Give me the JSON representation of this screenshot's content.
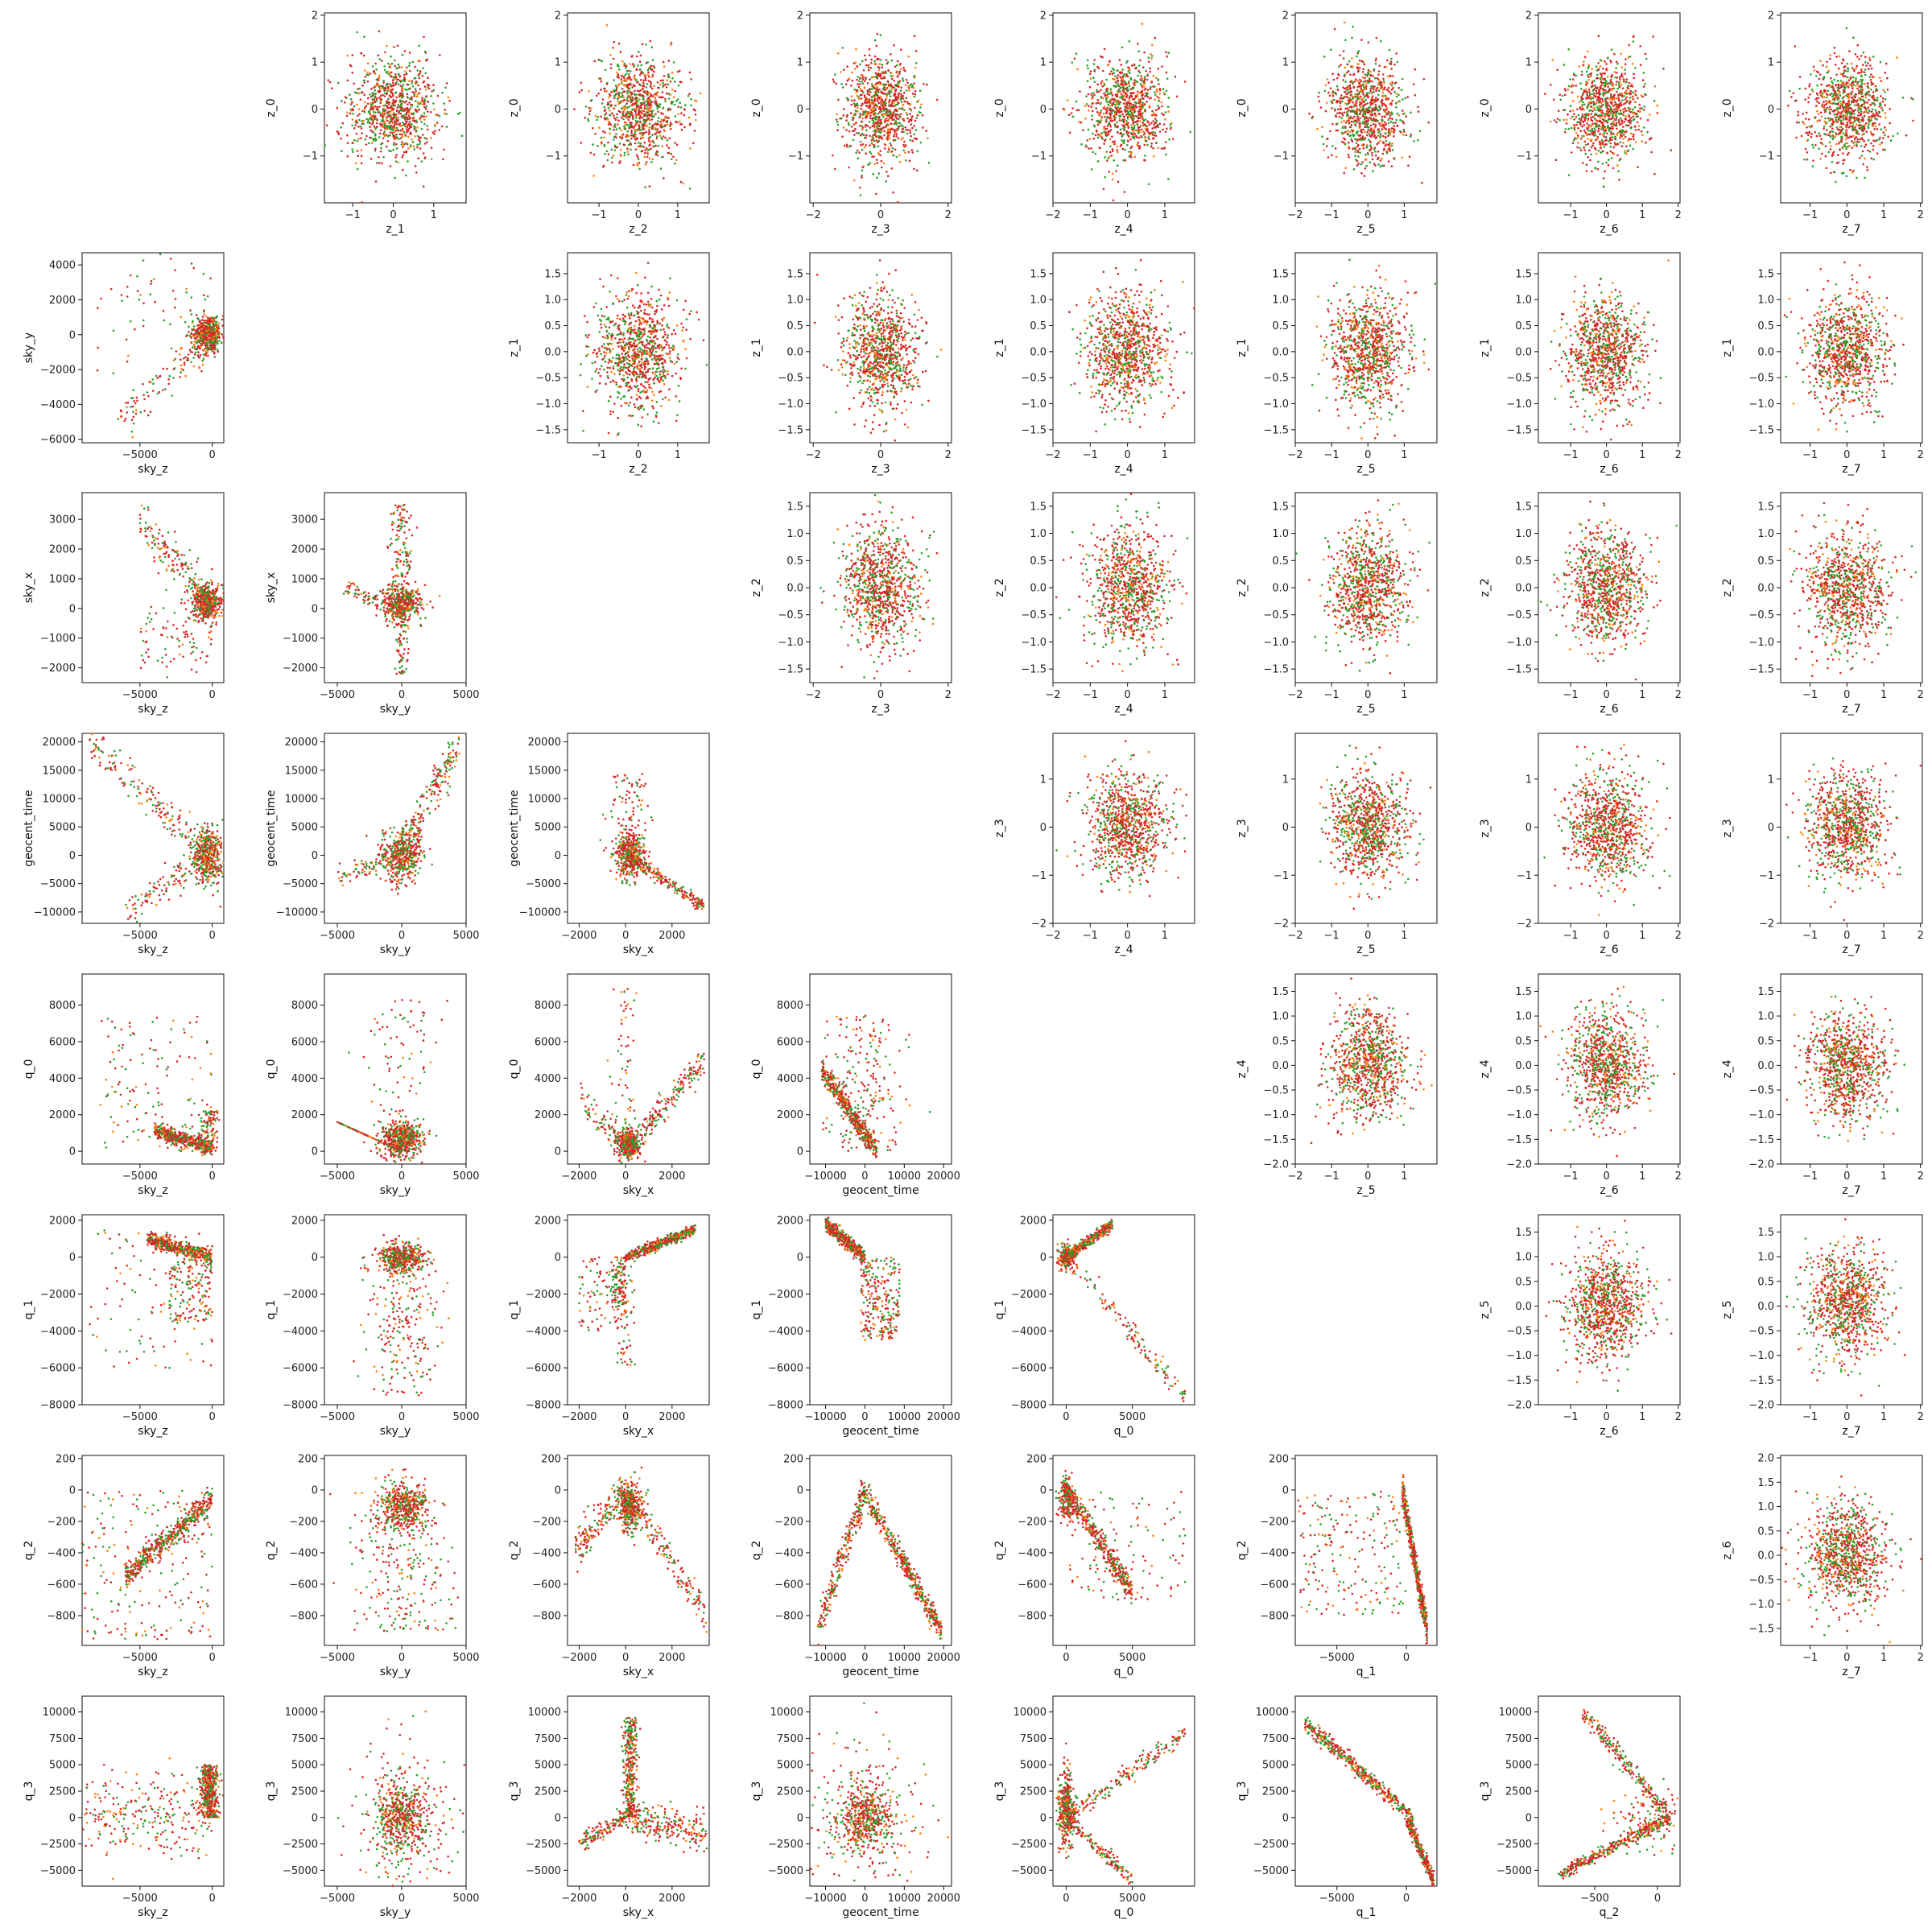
{
  "chart_data": {
    "type": "scatter",
    "layout": "pair-grid",
    "colors": {
      "green": "#2ca02c",
      "orange": "#ff7f0e",
      "red": "#d62728"
    },
    "rows": [
      {
        "ylabel": "z_0",
        "ylim": [
          -2.0,
          2.05
        ],
        "yticks": [
          -1,
          0,
          1,
          2
        ],
        "ytick_labels": [
          "−1",
          "0",
          "1",
          "2"
        ]
      },
      {
        "ylabel": "z_1",
        "ylim": [
          -1.75,
          1.9
        ],
        "yticks": [
          -1.5,
          -1.0,
          -0.5,
          0.0,
          0.5,
          1.0,
          1.5
        ],
        "ytick_labels": [
          "−1.5",
          "−1.0",
          "−0.5",
          "0.0",
          "0.5",
          "1.0",
          "1.5"
        ]
      },
      {
        "ylabel": "sky_y",
        "ylim": [
          -6200,
          4700
        ],
        "yticks": [
          -6000,
          -4000,
          -2000,
          0,
          2000,
          4000
        ],
        "ytick_labels": [
          "−6000",
          "−4000",
          "−2000",
          "0",
          "2000",
          "4000"
        ]
      },
      {
        "ylabel": "z_2",
        "ylim": [
          -1.75,
          1.75
        ],
        "yticks": [
          -1.5,
          -1.0,
          -0.5,
          0.0,
          0.5,
          1.0,
          1.5
        ],
        "ytick_labels": [
          "−1.5",
          "−1.0",
          "−0.5",
          "0.0",
          "0.5",
          "1.0",
          "1.5"
        ]
      },
      {
        "ylabel": "sky_x",
        "ylim": [
          -2500,
          3900
        ],
        "yticks": [
          -2000,
          -1000,
          0,
          1000,
          2000,
          3000
        ],
        "ytick_labels": [
          "−2000",
          "−1000",
          "0",
          "1000",
          "2000",
          "3000"
        ]
      },
      {
        "ylabel": "z_3",
        "ylim": [
          -2.0,
          1.95
        ],
        "yticks": [
          -2,
          -1,
          0,
          1
        ],
        "ytick_labels": [
          "−2",
          "−1",
          "0",
          "1"
        ]
      },
      {
        "ylabel": "geocent_time",
        "ylim": [
          -12000,
          21500
        ],
        "yticks": [
          -10000,
          -5000,
          0,
          5000,
          10000,
          15000,
          20000
        ],
        "ytick_labels": [
          "−10000",
          "−5000",
          "0",
          "5000",
          "10000",
          "15000",
          "20000"
        ]
      },
      {
        "ylabel": "z_4",
        "ylim": [
          -2.0,
          1.85
        ],
        "yticks": [
          -2.0,
          -1.5,
          -1.0,
          -0.5,
          0.0,
          0.5,
          1.0,
          1.5
        ],
        "ytick_labels": [
          "−2.0",
          "−1.5",
          "−1.0",
          "−0.5",
          "0.0",
          "0.5",
          "1.0",
          "1.5"
        ]
      },
      {
        "ylabel": "q_0",
        "ylim": [
          -700,
          9700
        ],
        "yticks": [
          0,
          2000,
          4000,
          6000,
          8000
        ],
        "ytick_labels": [
          "0",
          "2000",
          "4000",
          "6000",
          "8000"
        ]
      },
      {
        "ylabel": "z_5",
        "ylim": [
          -2.0,
          1.85
        ],
        "yticks": [
          -2.0,
          -1.5,
          -1.0,
          -0.5,
          0.0,
          0.5,
          1.0,
          1.5
        ],
        "ytick_labels": [
          "−2.0",
          "−1.5",
          "−1.0",
          "−0.5",
          "0.0",
          "0.5",
          "1.0",
          "1.5"
        ]
      },
      {
        "ylabel": "q_1",
        "ylim": [
          -8000,
          2300
        ],
        "yticks": [
          -8000,
          -6000,
          -4000,
          -2000,
          0,
          2000
        ],
        "ytick_labels": [
          "−8000",
          "−6000",
          "−4000",
          "−2000",
          "0",
          "2000"
        ]
      },
      {
        "ylabel": "q_2",
        "ylim": [
          -990,
          220
        ],
        "yticks": [
          -800,
          -600,
          -400,
          -200,
          0,
          200
        ],
        "ytick_labels": [
          "−800",
          "−600",
          "−400",
          "−200",
          "0",
          "200"
        ]
      },
      {
        "ylabel": "z_6",
        "ylim": [
          -1.85,
          2.05
        ],
        "yticks": [
          -1.5,
          -1.0,
          -0.5,
          0.0,
          0.5,
          1.0,
          1.5,
          2.0
        ],
        "ytick_labels": [
          "−1.5",
          "−1.0",
          "−0.5",
          "0.0",
          "0.5",
          "1.0",
          "1.5",
          "2.0"
        ]
      },
      {
        "ylabel": "q_3",
        "ylim": [
          -6500,
          11500
        ],
        "yticks": [
          -5000,
          -2500,
          0,
          2500,
          5000,
          7500,
          10000
        ],
        "ytick_labels": [
          "−5000",
          "−2500",
          "0",
          "2500",
          "5000",
          "7500",
          "10000"
        ]
      }
    ],
    "columns": [
      {
        "xlabel": "sky_z",
        "xlim": [
          -9000,
          800
        ],
        "xticks": [
          -5000,
          0
        ],
        "xtick_labels": [
          "−5000",
          "0"
        ]
      },
      {
        "xlabel": "sky_y",
        "xlim": [
          -6000,
          5000
        ],
        "xticks": [
          -5000,
          0,
          5000
        ],
        "xtick_labels": [
          "−5000",
          "0",
          "5000"
        ]
      },
      {
        "xlabel": "sky_x",
        "xlim": [
          -2500,
          3600
        ],
        "xticks": [
          -2000,
          0,
          2000
        ],
        "xtick_labels": [
          "−2000",
          "0",
          "2000"
        ]
      },
      {
        "xlabel": "geocent_time",
        "xlim": [
          -14000,
          22000
        ],
        "xticks": [
          -10000,
          0,
          10000,
          20000
        ],
        "xtick_labels": [
          "−10000",
          "0",
          "10000",
          "20000"
        ]
      },
      {
        "xlabel": "q_0",
        "xlim": [
          -1000,
          9700
        ],
        "xticks": [
          0,
          5000
        ],
        "xtick_labels": [
          "0",
          "5000"
        ]
      },
      {
        "xlabel": "q_1",
        "xlim": [
          -8000,
          2200
        ],
        "xticks": [
          -5000,
          0
        ],
        "xtick_labels": [
          "−5000",
          "0"
        ]
      },
      {
        "xlabel": "q_2",
        "xlim": [
          -950,
          180
        ],
        "xticks": [
          -500,
          0
        ],
        "xtick_labels": [
          "−500",
          "0"
        ]
      },
      {
        "xlabel": "z_1",
        "xlim": [
          -1.7,
          1.8
        ],
        "xticks": [
          -1,
          0,
          1
        ],
        "xtick_labels": [
          "−1",
          "0",
          "1"
        ]
      },
      {
        "xlabel": "z_2",
        "xlim": [
          -1.8,
          1.8
        ],
        "xticks": [
          -1,
          0,
          1
        ],
        "xtick_labels": [
          "−1",
          "0",
          "1"
        ]
      },
      {
        "xlabel": "z_3",
        "xlim": [
          -2.1,
          2.1
        ],
        "xticks": [
          -2,
          0,
          2
        ],
        "xtick_labels": [
          "−2",
          "0",
          "2"
        ]
      },
      {
        "xlabel": "z_4",
        "xlim": [
          -2.0,
          1.8
        ],
        "xticks": [
          -2,
          -1,
          0,
          1
        ],
        "xtick_labels": [
          "−2",
          "−1",
          "0",
          "1"
        ]
      },
      {
        "xlabel": "z_5",
        "xlim": [
          -2.0,
          1.9
        ],
        "xticks": [
          -2,
          -1,
          0,
          1
        ],
        "xtick_labels": [
          "−2",
          "−1",
          "0",
          "1"
        ]
      },
      {
        "xlabel": "z_6",
        "xlim": [
          -1.9,
          2.05
        ],
        "xticks": [
          -1,
          0,
          1,
          2
        ],
        "xtick_labels": [
          "−1",
          "0",
          "1",
          "2"
        ]
      },
      {
        "xlabel": "z_7",
        "xlim": [
          -1.8,
          2.05
        ],
        "xticks": [
          -1,
          0,
          1,
          2
        ],
        "xtick_labels": [
          "−1",
          "0",
          "1",
          "2"
        ]
      }
    ],
    "panels": [
      {
        "row": 0,
        "col": 1,
        "x": "z_1",
        "y": "z_0",
        "yscale": 0,
        "ax": 7,
        "ay": 0,
        "shape": "blob"
      },
      {
        "row": 0,
        "col": 2,
        "x": "z_2",
        "y": "z_0",
        "ax": 8,
        "ay": 0,
        "shape": "blob"
      },
      {
        "row": 0,
        "col": 3,
        "x": "z_3",
        "y": "z_0",
        "ax": 9,
        "ay": 0,
        "shape": "blob"
      },
      {
        "row": 0,
        "col": 4,
        "x": "z_4",
        "y": "z_0",
        "ax": 10,
        "ay": 0,
        "shape": "blob"
      },
      {
        "row": 0,
        "col": 5,
        "x": "z_5",
        "y": "z_0",
        "ax": 11,
        "ay": 0,
        "shape": "blob"
      },
      {
        "row": 0,
        "col": 6,
        "x": "z_6",
        "y": "z_0",
        "ax": 12,
        "ay": 0,
        "shape": "blob"
      },
      {
        "row": 0,
        "col": 7,
        "x": "z_7",
        "y": "z_0",
        "ax": 13,
        "ay": 0,
        "shape": "blob"
      },
      {
        "row": 1,
        "col": 0,
        "x": "sky_z",
        "y": "sky_y",
        "ax": 0,
        "ay": 2,
        "shape": "sky_z-sky_y"
      },
      {
        "row": 1,
        "col": 2,
        "x": "z_2",
        "y": "z_1",
        "ax": 8,
        "ay": 1,
        "shape": "blob"
      },
      {
        "row": 1,
        "col": 3,
        "x": "z_3",
        "y": "z_1",
        "ax": 9,
        "ay": 1,
        "shape": "blob"
      },
      {
        "row": 1,
        "col": 4,
        "x": "z_4",
        "y": "z_1",
        "ax": 10,
        "ay": 1,
        "shape": "blob"
      },
      {
        "row": 1,
        "col": 5,
        "x": "z_5",
        "y": "z_1",
        "ax": 11,
        "ay": 1,
        "shape": "blob"
      },
      {
        "row": 1,
        "col": 6,
        "x": "z_6",
        "y": "z_1",
        "ax": 12,
        "ay": 1,
        "shape": "blob"
      },
      {
        "row": 1,
        "col": 7,
        "x": "z_7",
        "y": "z_1",
        "ax": 13,
        "ay": 1,
        "shape": "blob"
      },
      {
        "row": 2,
        "col": 0,
        "x": "sky_z",
        "y": "sky_x",
        "ax": 0,
        "ay": 4,
        "shape": "sky_z-sky_x"
      },
      {
        "row": 2,
        "col": 1,
        "x": "sky_y",
        "y": "sky_x",
        "ax": 1,
        "ay": 4,
        "shape": "sky_y-sky_x"
      },
      {
        "row": 2,
        "col": 3,
        "x": "z_3",
        "y": "z_2",
        "ax": 9,
        "ay": 3,
        "shape": "blob"
      },
      {
        "row": 2,
        "col": 4,
        "x": "z_4",
        "y": "z_2",
        "ax": 10,
        "ay": 3,
        "shape": "blob"
      },
      {
        "row": 2,
        "col": 5,
        "x": "z_5",
        "y": "z_2",
        "ax": 11,
        "ay": 3,
        "shape": "blob"
      },
      {
        "row": 2,
        "col": 6,
        "x": "z_6",
        "y": "z_2",
        "ax": 12,
        "ay": 3,
        "shape": "blob"
      },
      {
        "row": 2,
        "col": 7,
        "x": "z_7",
        "y": "z_2",
        "ax": 13,
        "ay": 3,
        "shape": "blob"
      },
      {
        "row": 3,
        "col": 0,
        "x": "sky_z",
        "y": "geocent_time",
        "ax": 0,
        "ay": 6,
        "shape": "sky_z-time"
      },
      {
        "row": 3,
        "col": 1,
        "x": "sky_y",
        "y": "geocent_time",
        "ax": 1,
        "ay": 6,
        "shape": "sky_y-time"
      },
      {
        "row": 3,
        "col": 2,
        "x": "sky_x",
        "y": "geocent_time",
        "ax": 2,
        "ay": 6,
        "shape": "sky_x-time"
      },
      {
        "row": 3,
        "col": 4,
        "x": "z_4",
        "y": "z_3",
        "ax": 10,
        "ay": 5,
        "shape": "blob"
      },
      {
        "row": 3,
        "col": 5,
        "x": "z_5",
        "y": "z_3",
        "ax": 11,
        "ay": 5,
        "shape": "blob"
      },
      {
        "row": 3,
        "col": 6,
        "x": "z_6",
        "y": "z_3",
        "ax": 12,
        "ay": 5,
        "shape": "blob"
      },
      {
        "row": 3,
        "col": 7,
        "x": "z_7",
        "y": "z_3",
        "ax": 13,
        "ay": 5,
        "shape": "blob"
      },
      {
        "row": 4,
        "col": 0,
        "x": "sky_z",
        "y": "q_0",
        "ax": 0,
        "ay": 8,
        "shape": "sky_z-q0"
      },
      {
        "row": 4,
        "col": 1,
        "x": "sky_y",
        "y": "q_0",
        "ax": 1,
        "ay": 8,
        "shape": "sky_y-q0"
      },
      {
        "row": 4,
        "col": 2,
        "x": "sky_x",
        "y": "q_0",
        "ax": 2,
        "ay": 8,
        "shape": "sky_x-q0"
      },
      {
        "row": 4,
        "col": 3,
        "x": "geocent_time",
        "y": "q_0",
        "ax": 3,
        "ay": 8,
        "shape": "time-q0"
      },
      {
        "row": 4,
        "col": 5,
        "x": "z_5",
        "y": "z_4",
        "ax": 11,
        "ay": 7,
        "shape": "blob"
      },
      {
        "row": 4,
        "col": 6,
        "x": "z_6",
        "y": "z_4",
        "ax": 12,
        "ay": 7,
        "shape": "blob"
      },
      {
        "row": 4,
        "col": 7,
        "x": "z_7",
        "y": "z_4",
        "ax": 13,
        "ay": 7,
        "shape": "blob"
      },
      {
        "row": 5,
        "col": 0,
        "x": "sky_z",
        "y": "q_1",
        "ax": 0,
        "ay": 10,
        "shape": "sky_z-q1"
      },
      {
        "row": 5,
        "col": 1,
        "x": "sky_y",
        "y": "q_1",
        "ax": 1,
        "ay": 10,
        "shape": "sky_y-q1"
      },
      {
        "row": 5,
        "col": 2,
        "x": "sky_x",
        "y": "q_1",
        "ax": 2,
        "ay": 10,
        "shape": "sky_x-q1"
      },
      {
        "row": 5,
        "col": 3,
        "x": "geocent_time",
        "y": "q_1",
        "ax": 3,
        "ay": 10,
        "shape": "time-q1"
      },
      {
        "row": 5,
        "col": 4,
        "x": "q_0",
        "y": "q_1",
        "ax": 4,
        "ay": 10,
        "shape": "q0-q1"
      },
      {
        "row": 5,
        "col": 6,
        "x": "z_6",
        "y": "z_5",
        "ax": 12,
        "ay": 9,
        "shape": "blob"
      },
      {
        "row": 5,
        "col": 7,
        "x": "z_7",
        "y": "z_5",
        "ax": 13,
        "ay": 9,
        "shape": "blob"
      },
      {
        "row": 6,
        "col": 0,
        "x": "sky_z",
        "y": "q_2",
        "ax": 0,
        "ay": 11,
        "shape": "sky_z-q2"
      },
      {
        "row": 6,
        "col": 1,
        "x": "sky_y",
        "y": "q_2",
        "ax": 1,
        "ay": 11,
        "shape": "sky_y-q2"
      },
      {
        "row": 6,
        "col": 2,
        "x": "sky_x",
        "y": "q_2",
        "ax": 2,
        "ay": 11,
        "shape": "sky_x-q2"
      },
      {
        "row": 6,
        "col": 3,
        "x": "geocent_time",
        "y": "q_2",
        "ax": 3,
        "ay": 11,
        "shape": "time-q2"
      },
      {
        "row": 6,
        "col": 4,
        "x": "q_0",
        "y": "q_2",
        "ax": 4,
        "ay": 11,
        "shape": "q0-q2"
      },
      {
        "row": 6,
        "col": 5,
        "x": "q_1",
        "y": "q_2",
        "ax": 5,
        "ay": 11,
        "shape": "q1-q2"
      },
      {
        "row": 6,
        "col": 7,
        "x": "z_7",
        "y": "z_6",
        "ax": 13,
        "ay": 12,
        "shape": "blob"
      },
      {
        "row": 7,
        "col": 0,
        "x": "sky_z",
        "y": "q_3",
        "ax": 0,
        "ay": 13,
        "shape": "sky_z-q3"
      },
      {
        "row": 7,
        "col": 1,
        "x": "sky_y",
        "y": "q_3",
        "ax": 1,
        "ay": 13,
        "shape": "sky_y-q3"
      },
      {
        "row": 7,
        "col": 2,
        "x": "sky_x",
        "y": "q_3",
        "ax": 2,
        "ay": 13,
        "shape": "sky_x-q3"
      },
      {
        "row": 7,
        "col": 3,
        "x": "geocent_time",
        "y": "q_3",
        "ax": 3,
        "ay": 13,
        "shape": "time-q3"
      },
      {
        "row": 7,
        "col": 4,
        "x": "q_0",
        "y": "q_3",
        "ax": 4,
        "ay": 13,
        "shape": "q0-q3"
      },
      {
        "row": 7,
        "col": 5,
        "x": "q_1",
        "y": "q_3",
        "ax": 5,
        "ay": 13,
        "shape": "q1-q3"
      },
      {
        "row": 7,
        "col": 6,
        "x": "q_2",
        "y": "q_3",
        "ax": 6,
        "ay": 13,
        "shape": "q2-q3"
      }
    ]
  }
}
